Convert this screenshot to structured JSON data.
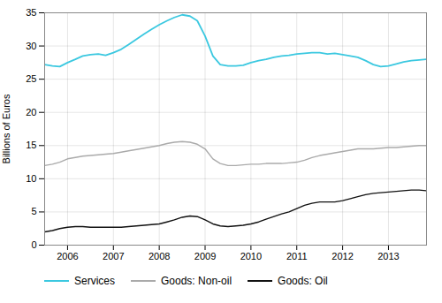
{
  "chart_data": {
    "type": "line",
    "ylabel": "Billions of Euros",
    "xlim": [
      2005.5,
      2013.83
    ],
    "xticks": [
      2006,
      2007,
      2008,
      2009,
      2010,
      2011,
      2012,
      2013
    ],
    "ylim": [
      0,
      35
    ],
    "yticks": [
      0,
      5,
      10,
      15,
      20,
      25,
      30,
      35
    ],
    "grid": true,
    "legend": "bottom",
    "x": [
      2005.5,
      2005.67,
      2005.83,
      2006.0,
      2006.17,
      2006.33,
      2006.5,
      2006.67,
      2006.83,
      2007.0,
      2007.17,
      2007.33,
      2007.5,
      2007.67,
      2007.83,
      2008.0,
      2008.17,
      2008.33,
      2008.5,
      2008.67,
      2008.83,
      2009.0,
      2009.17,
      2009.33,
      2009.5,
      2009.67,
      2009.83,
      2010.0,
      2010.17,
      2010.33,
      2010.5,
      2010.67,
      2010.83,
      2011.0,
      2011.17,
      2011.33,
      2011.5,
      2011.67,
      2011.83,
      2012.0,
      2012.17,
      2012.33,
      2012.5,
      2012.67,
      2012.83,
      2013.0,
      2013.17,
      2013.33,
      2013.5,
      2013.67,
      2013.83
    ],
    "series": [
      {
        "name": "Services",
        "color": "#3BC8E0",
        "values": [
          27.2,
          27.0,
          26.9,
          27.5,
          28.0,
          28.5,
          28.7,
          28.8,
          28.6,
          29.0,
          29.5,
          30.2,
          31.0,
          31.8,
          32.5,
          33.2,
          33.8,
          34.3,
          34.7,
          34.5,
          33.8,
          31.5,
          28.5,
          27.2,
          27.0,
          27.0,
          27.1,
          27.5,
          27.8,
          28.0,
          28.3,
          28.5,
          28.6,
          28.8,
          28.9,
          29.0,
          29.0,
          28.8,
          28.9,
          28.7,
          28.5,
          28.3,
          27.8,
          27.2,
          26.9,
          27.0,
          27.3,
          27.6,
          27.8,
          27.9,
          28.0
        ]
      },
      {
        "name": "Goods: Non-oil",
        "color": "#AAAAAA",
        "values": [
          12.0,
          12.2,
          12.5,
          13.0,
          13.2,
          13.4,
          13.5,
          13.6,
          13.7,
          13.8,
          14.0,
          14.2,
          14.4,
          14.6,
          14.8,
          15.0,
          15.3,
          15.5,
          15.6,
          15.5,
          15.2,
          14.5,
          13.0,
          12.3,
          12.0,
          12.0,
          12.1,
          12.2,
          12.2,
          12.3,
          12.3,
          12.3,
          12.4,
          12.5,
          12.8,
          13.2,
          13.5,
          13.7,
          13.9,
          14.1,
          14.3,
          14.5,
          14.5,
          14.5,
          14.6,
          14.7,
          14.7,
          14.8,
          14.9,
          15.0,
          15.0
        ]
      },
      {
        "name": "Goods: Oil",
        "color": "#111111",
        "values": [
          2.0,
          2.2,
          2.5,
          2.7,
          2.8,
          2.8,
          2.7,
          2.7,
          2.7,
          2.7,
          2.7,
          2.8,
          2.9,
          3.0,
          3.1,
          3.2,
          3.5,
          3.8,
          4.2,
          4.4,
          4.3,
          3.8,
          3.2,
          2.9,
          2.8,
          2.9,
          3.0,
          3.2,
          3.5,
          3.9,
          4.3,
          4.7,
          5.0,
          5.5,
          6.0,
          6.3,
          6.5,
          6.5,
          6.5,
          6.7,
          7.0,
          7.3,
          7.6,
          7.8,
          7.9,
          8.0,
          8.1,
          8.2,
          8.3,
          8.3,
          8.2
        ]
      }
    ]
  }
}
